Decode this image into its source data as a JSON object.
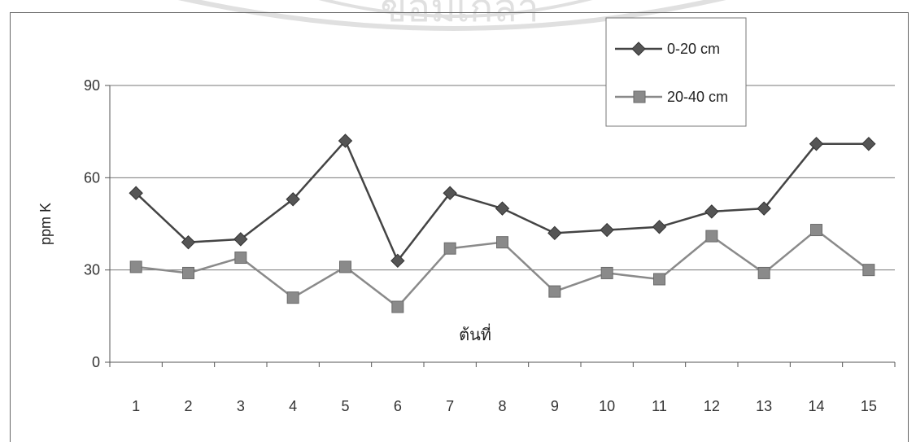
{
  "chart_data": {
    "type": "line",
    "categories": [
      "1",
      "2",
      "3",
      "4",
      "5",
      "6",
      "7",
      "8",
      "9",
      "10",
      "11",
      "12",
      "13",
      "14",
      "15"
    ],
    "series": [
      {
        "name": "0-20 cm",
        "values": [
          55,
          39,
          40,
          53,
          72,
          33,
          55,
          50,
          42,
          43,
          44,
          49,
          50,
          71,
          71
        ],
        "color": "#444444",
        "marker": "diamond"
      },
      {
        "name": "20-40 cm",
        "values": [
          31,
          29,
          34,
          21,
          31,
          18,
          37,
          39,
          23,
          29,
          27,
          41,
          29,
          43,
          30
        ],
        "color": "#8a8a8a",
        "marker": "square"
      }
    ],
    "xlabel": "ต้นที่",
    "ylabel": "ppm K",
    "ylim": [
      0,
      90
    ],
    "yticks": [
      "0",
      "30",
      "60",
      "90"
    ],
    "grid": true,
    "legend_position": "top-right"
  },
  "watermark_text": "ข้อมเกล้า"
}
